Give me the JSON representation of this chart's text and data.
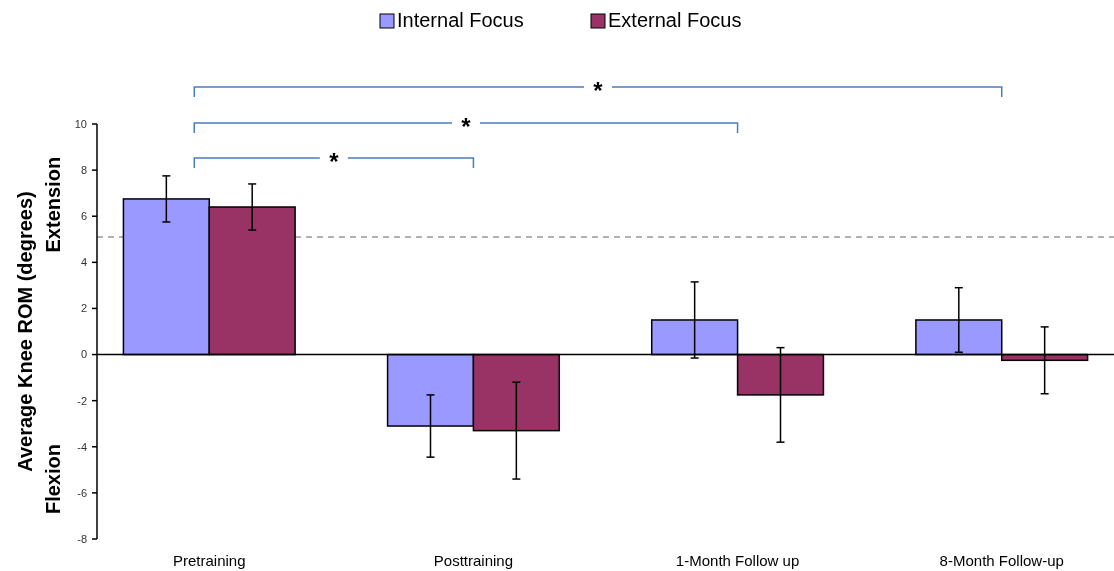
{
  "chart_data": {
    "type": "bar",
    "ylabel": "Average Knee  ROM (degrees)",
    "categories": [
      "Pretraining",
      "Posttraining",
      "1-Month Follow up",
      "8-Month Follow-up"
    ],
    "series": [
      {
        "name": "Internal Focus",
        "color": "#9999ff",
        "values": [
          6.75,
          -3.1,
          1.5,
          1.5
        ],
        "errors": [
          1.0,
          1.35,
          1.65,
          1.4
        ]
      },
      {
        "name": "External Focus",
        "color": "#993366",
        "values": [
          6.4,
          -3.3,
          -1.75,
          -0.25
        ],
        "errors": [
          1.0,
          2.1,
          2.05,
          1.45
        ]
      }
    ],
    "ylim": [
      -8,
      10
    ],
    "yticks": [
      -8,
      -6,
      -4,
      -2,
      0,
      2,
      4,
      6,
      8,
      10
    ],
    "legend": "top",
    "ref_lines": [
      {
        "axis": "y",
        "value": 5.1,
        "color": "#999999",
        "line_style": "dashed"
      }
    ],
    "annotations": [
      "Extension",
      "Flexion",
      "*",
      "*",
      "*"
    ]
  }
}
